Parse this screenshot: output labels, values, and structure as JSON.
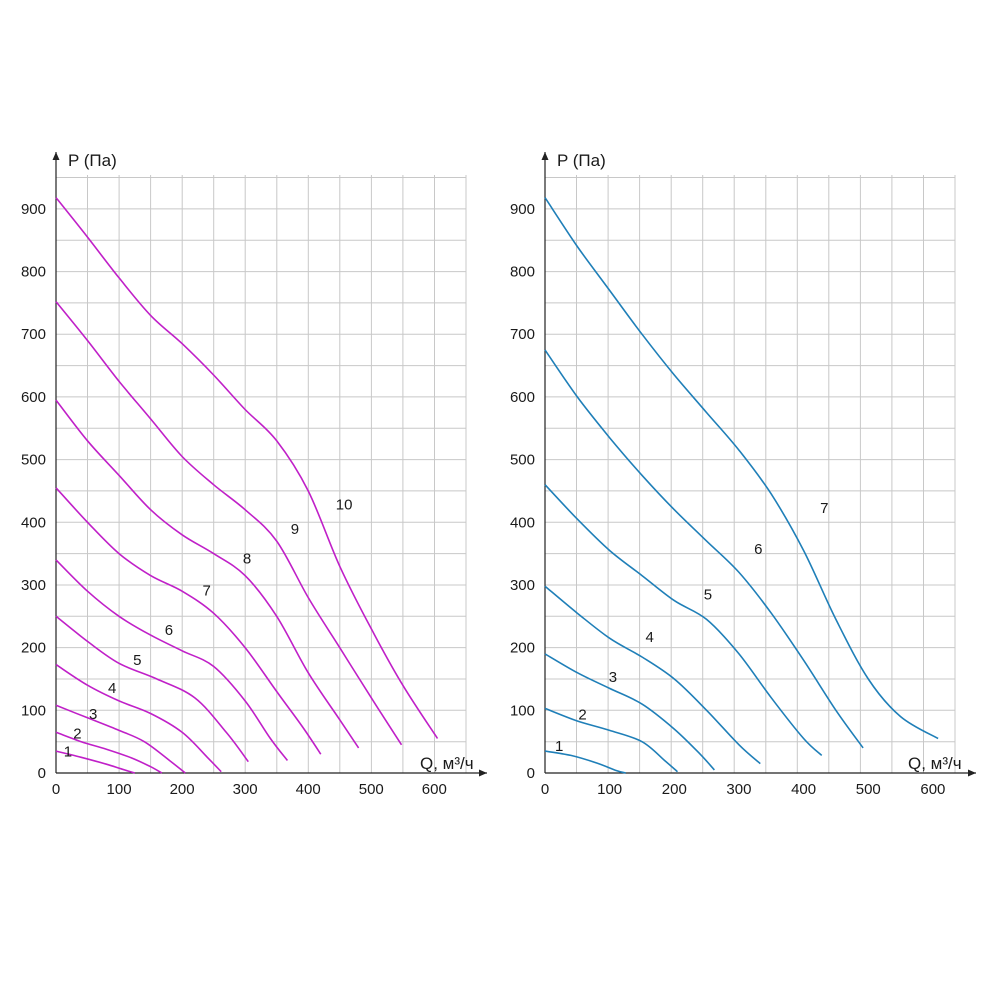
{
  "chart_data": [
    {
      "type": "line",
      "title": "",
      "xlabel": "Q, м³/ч",
      "ylabel": "P (Па)",
      "xlim": [
        0,
        650
      ],
      "ylim": [
        0,
        950
      ],
      "xticks": [
        0,
        100,
        200,
        300,
        400,
        500,
        600
      ],
      "yticks": [
        0,
        100,
        200,
        300,
        400,
        500,
        600,
        700,
        800,
        900
      ],
      "grid": true,
      "legend": "labels on curves",
      "color": "#c020c8",
      "series": [
        {
          "name": "1",
          "label_at": [
            19,
            26
          ],
          "points": [
            [
              0,
              35
            ],
            [
              40,
              25
            ],
            [
              80,
              14
            ],
            [
              105,
              6
            ],
            [
              125,
              0
            ]
          ]
        },
        {
          "name": "2",
          "label_at": [
            34,
            55
          ],
          "points": [
            [
              0,
              65
            ],
            [
              40,
              50
            ],
            [
              80,
              38
            ],
            [
              120,
              24
            ],
            [
              150,
              10
            ],
            [
              168,
              0
            ]
          ]
        },
        {
          "name": "3",
          "label_at": [
            59,
            86
          ],
          "points": [
            [
              0,
              108
            ],
            [
              50,
              88
            ],
            [
              100,
              68
            ],
            [
              140,
              50
            ],
            [
              180,
              20
            ],
            [
              205,
              0
            ]
          ]
        },
        {
          "name": "4",
          "label_at": [
            89,
            128
          ],
          "points": [
            [
              0,
              173
            ],
            [
              50,
              140
            ],
            [
              100,
              115
            ],
            [
              150,
              95
            ],
            [
              200,
              65
            ],
            [
              240,
              25
            ],
            [
              262,
              2
            ]
          ]
        },
        {
          "name": "5",
          "label_at": [
            129,
            172
          ],
          "points": [
            [
              0,
              250
            ],
            [
              50,
              210
            ],
            [
              100,
              175
            ],
            [
              160,
              150
            ],
            [
              220,
              120
            ],
            [
              270,
              65
            ],
            [
              305,
              18
            ]
          ]
        },
        {
          "name": "6",
          "label_at": [
            179,
            220
          ],
          "points": [
            [
              0,
              340
            ],
            [
              50,
              290
            ],
            [
              100,
              250
            ],
            [
              150,
              220
            ],
            [
              200,
              195
            ],
            [
              250,
              170
            ],
            [
              300,
              115
            ],
            [
              340,
              55
            ],
            [
              367,
              20
            ]
          ]
        },
        {
          "name": "7",
          "label_at": [
            239,
            283
          ],
          "points": [
            [
              0,
              455
            ],
            [
              50,
              400
            ],
            [
              100,
              350
            ],
            [
              150,
              315
            ],
            [
              200,
              290
            ],
            [
              250,
              255
            ],
            [
              300,
              200
            ],
            [
              350,
              130
            ],
            [
              390,
              75
            ],
            [
              420,
              30
            ]
          ]
        },
        {
          "name": "8",
          "label_at": [
            303,
            334
          ],
          "points": [
            [
              0,
              595
            ],
            [
              50,
              530
            ],
            [
              100,
              475
            ],
            [
              150,
              420
            ],
            [
              200,
              380
            ],
            [
              250,
              350
            ],
            [
              300,
              315
            ],
            [
              350,
              250
            ],
            [
              400,
              160
            ],
            [
              450,
              85
            ],
            [
              480,
              40
            ]
          ]
        },
        {
          "name": "9",
          "label_at": [
            379,
            381
          ],
          "points": [
            [
              0,
              752
            ],
            [
              50,
              690
            ],
            [
              100,
              625
            ],
            [
              150,
              565
            ],
            [
              200,
              505
            ],
            [
              250,
              460
            ],
            [
              300,
              420
            ],
            [
              350,
              370
            ],
            [
              400,
              280
            ],
            [
              450,
              200
            ],
            [
              500,
              120
            ],
            [
              548,
              45
            ]
          ]
        },
        {
          "name": "10",
          "label_at": [
            457,
            420
          ],
          "points": [
            [
              0,
              918
            ],
            [
              50,
              855
            ],
            [
              100,
              790
            ],
            [
              150,
              730
            ],
            [
              200,
              685
            ],
            [
              250,
              635
            ],
            [
              300,
              580
            ],
            [
              350,
              530
            ],
            [
              400,
              450
            ],
            [
              450,
              330
            ],
            [
              500,
              230
            ],
            [
              550,
              140
            ],
            [
              605,
              55
            ]
          ]
        }
      ]
    },
    {
      "type": "line",
      "title": "",
      "xlabel": "Q, м³/ч",
      "ylabel": "P (Па)",
      "xlim": [
        0,
        630
      ],
      "ylim": [
        0,
        950
      ],
      "xticks": [
        0,
        100,
        200,
        300,
        400,
        500,
        600
      ],
      "yticks": [
        0,
        100,
        200,
        300,
        400,
        500,
        600,
        700,
        800,
        900
      ],
      "grid": true,
      "legend": "labels on curves",
      "color": "#1f7fb8",
      "series": [
        {
          "name": "1",
          "label_at": [
            22,
            35
          ],
          "points": [
            [
              0,
              35
            ],
            [
              40,
              28
            ],
            [
              80,
              16
            ],
            [
              110,
              4
            ],
            [
              125,
              0
            ]
          ]
        },
        {
          "name": "2",
          "label_at": [
            58,
            85
          ],
          "points": [
            [
              0,
              103
            ],
            [
              50,
              83
            ],
            [
              100,
              68
            ],
            [
              150,
              50
            ],
            [
              185,
              20
            ],
            [
              205,
              2
            ]
          ]
        },
        {
          "name": "3",
          "label_at": [
            105,
            145
          ],
          "points": [
            [
              0,
              190
            ],
            [
              50,
              160
            ],
            [
              100,
              135
            ],
            [
              150,
              110
            ],
            [
              200,
              70
            ],
            [
              240,
              30
            ],
            [
              262,
              5
            ]
          ]
        },
        {
          "name": "4",
          "label_at": [
            162,
            209
          ],
          "points": [
            [
              0,
              298
            ],
            [
              50,
              255
            ],
            [
              100,
              215
            ],
            [
              150,
              185
            ],
            [
              200,
              150
            ],
            [
              250,
              100
            ],
            [
              300,
              45
            ],
            [
              333,
              15
            ]
          ]
        },
        {
          "name": "5",
          "label_at": [
            252,
            277
          ],
          "points": [
            [
              0,
              460
            ],
            [
              50,
              405
            ],
            [
              100,
              355
            ],
            [
              150,
              315
            ],
            [
              200,
              275
            ],
            [
              250,
              245
            ],
            [
              300,
              190
            ],
            [
              350,
              120
            ],
            [
              400,
              55
            ],
            [
              428,
              28
            ]
          ]
        },
        {
          "name": "6",
          "label_at": [
            330,
            349
          ],
          "points": [
            [
              0,
              675
            ],
            [
              50,
              600
            ],
            [
              100,
              535
            ],
            [
              150,
              475
            ],
            [
              200,
              420
            ],
            [
              250,
              370
            ],
            [
              300,
              320
            ],
            [
              350,
              255
            ],
            [
              400,
              180
            ],
            [
              450,
              100
            ],
            [
              492,
              40
            ]
          ]
        },
        {
          "name": "7",
          "label_at": [
            432,
            415
          ],
          "points": [
            [
              0,
              918
            ],
            [
              50,
              840
            ],
            [
              100,
              770
            ],
            [
              150,
              700
            ],
            [
              200,
              635
            ],
            [
              250,
              575
            ],
            [
              300,
              515
            ],
            [
              350,
              445
            ],
            [
              400,
              355
            ],
            [
              450,
              245
            ],
            [
              500,
              150
            ],
            [
              550,
              90
            ],
            [
              608,
              55
            ]
          ]
        }
      ]
    }
  ]
}
